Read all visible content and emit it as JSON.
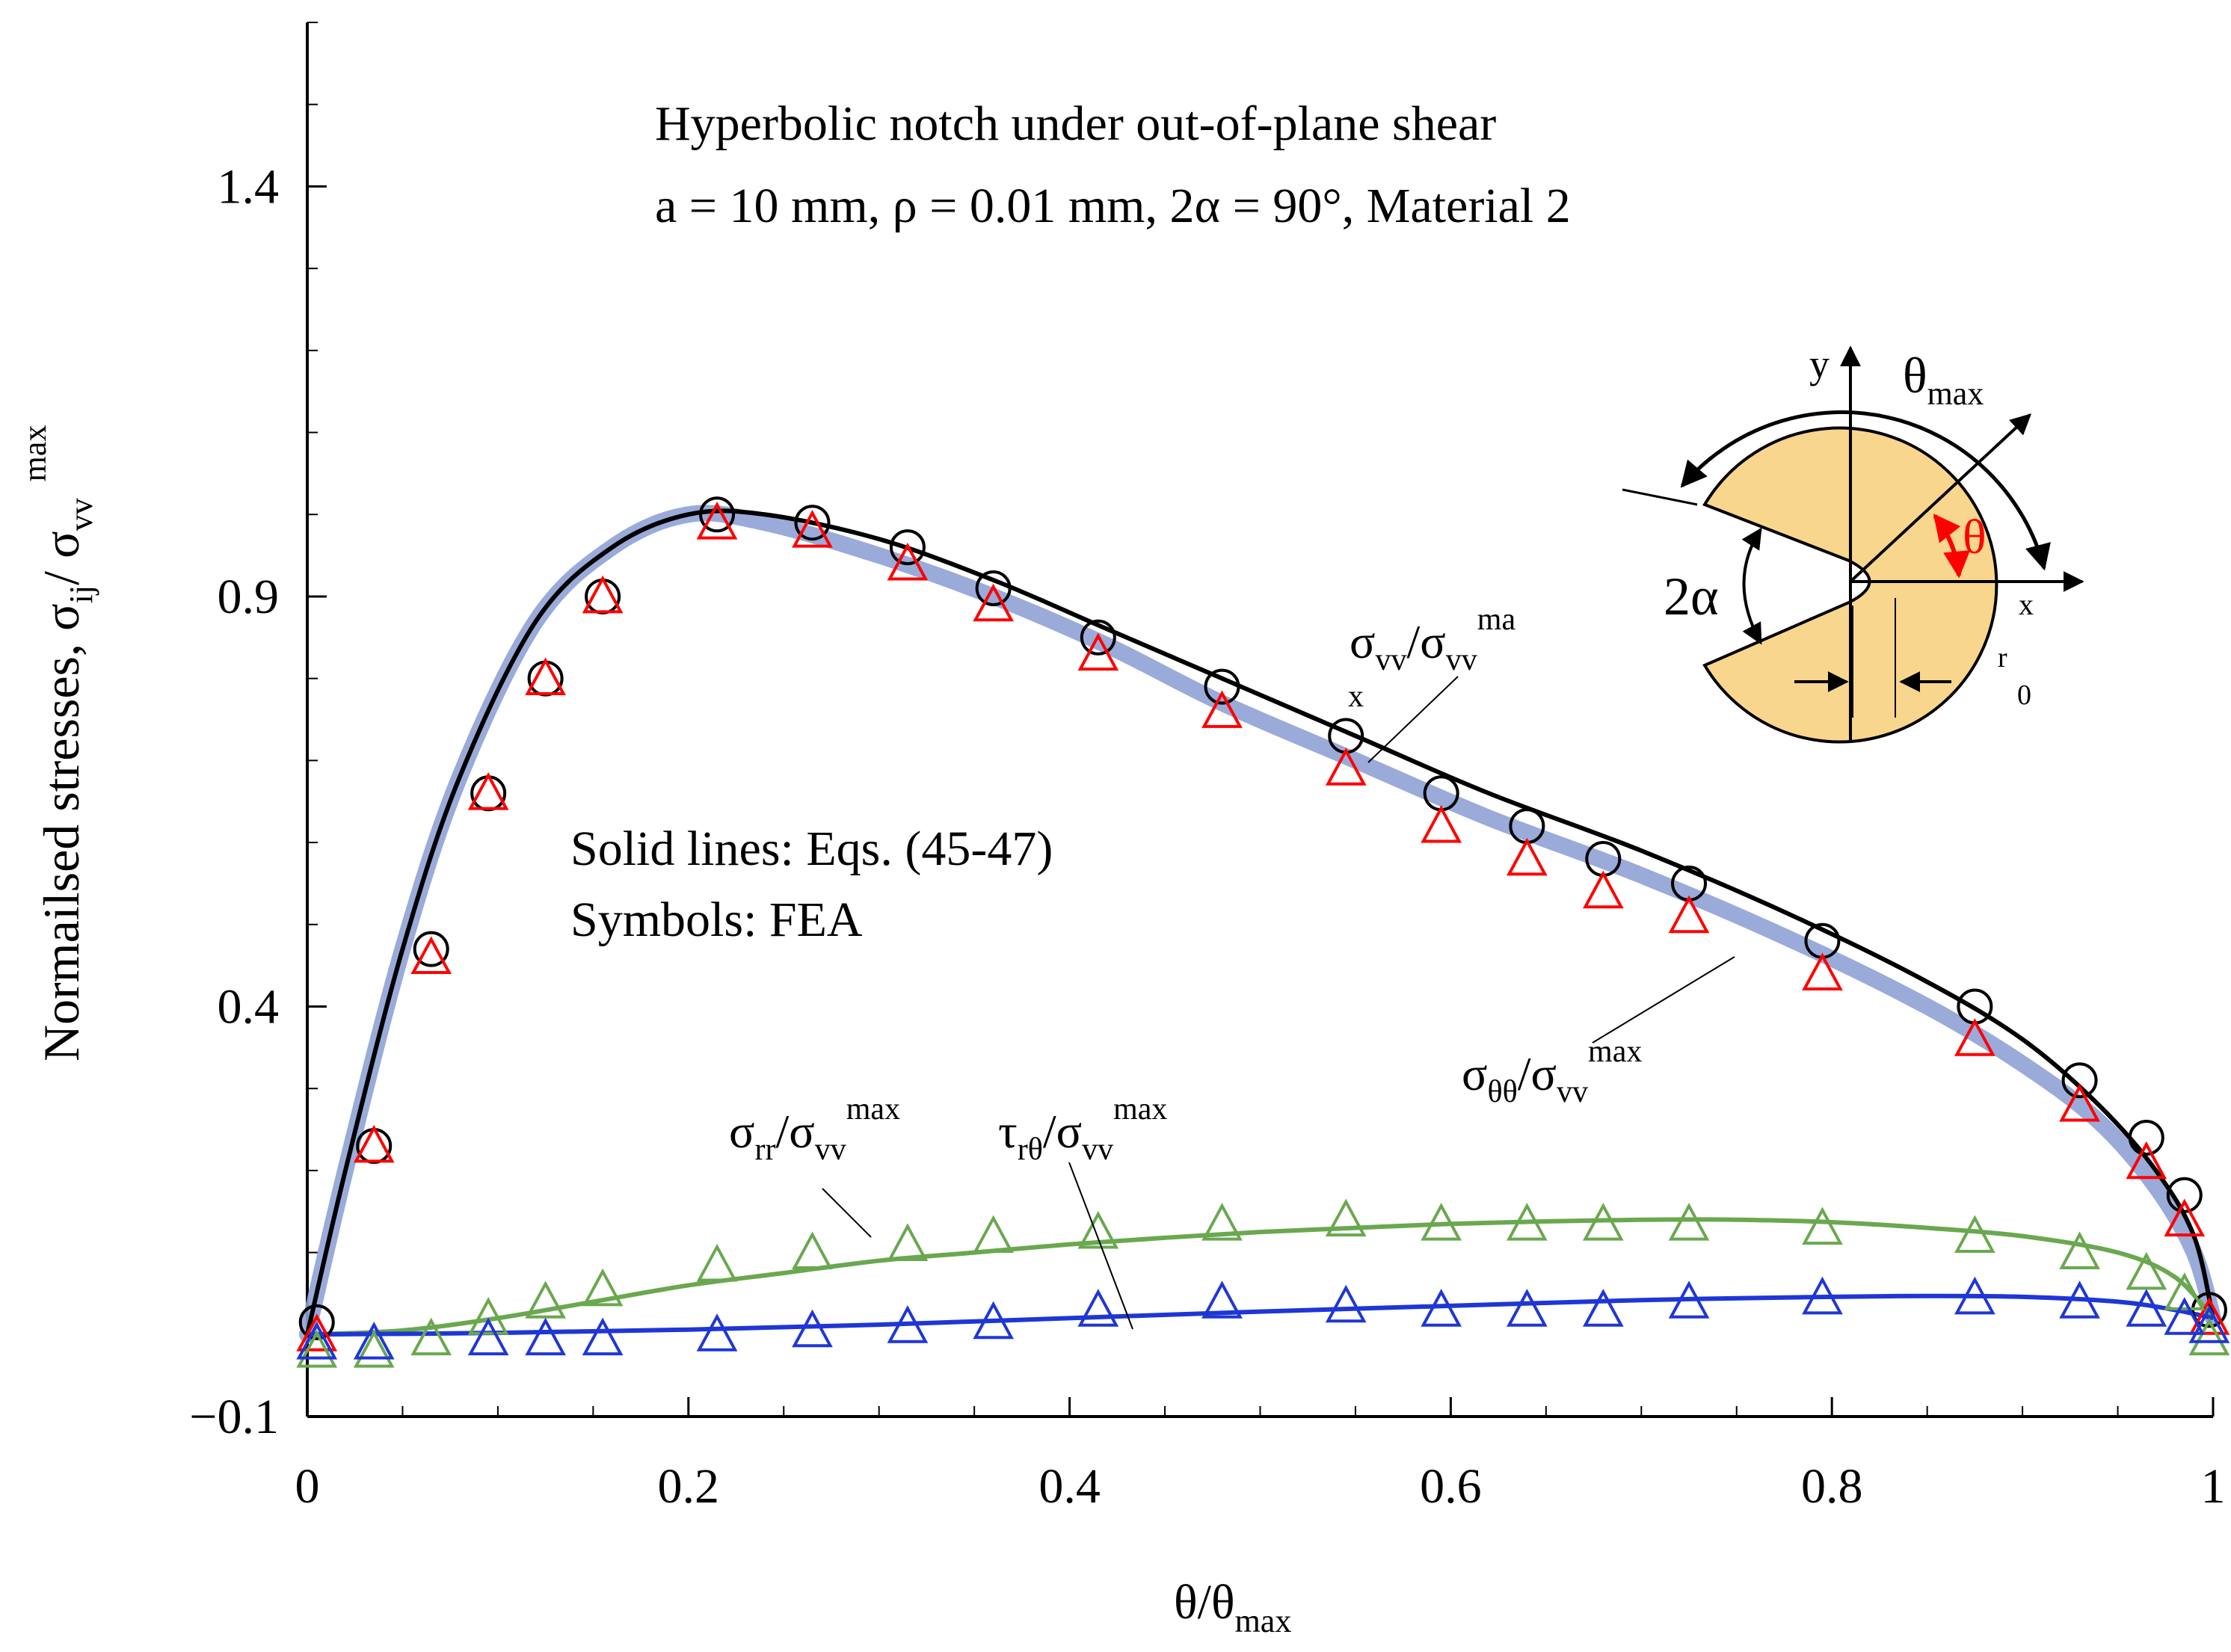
{
  "chart_data": {
    "type": "line",
    "title": "Hyperbolic notch under out-of-plane shear",
    "subtitle": "a = 10 mm, ρ = 0.01 mm, 2α = 90°, Material 2",
    "xlabel": {
      "main": "θ/θ",
      "sub": "max"
    },
    "ylabel": {
      "main": "Normailsed stresses, σ",
      "sub": "ij",
      "mid": "/ σ",
      "sub2": "vv",
      "sup": "max"
    },
    "xlim": [
      0,
      1
    ],
    "ylim": [
      -0.1,
      1.6
    ],
    "x_ticks": [
      0,
      0.2,
      0.4,
      0.6,
      0.8,
      1
    ],
    "x_tick_labels": [
      "0",
      "0.2",
      "0.4",
      "0.6",
      "0.8",
      "1"
    ],
    "y_ticks": [
      -0.1,
      0.4,
      0.9,
      1.4
    ],
    "y_tick_labels": [
      "−0.1",
      "0.4",
      "0.9",
      "1.4"
    ],
    "y_minor_step": 0.1,
    "x_minor_step": 0.05,
    "annotations": {
      "solid_lines": "Solid lines: Eqs. (45-47)",
      "symbols": "Symbols: FEA"
    },
    "series_labels": {
      "svv": {
        "main": "σ",
        "sub": "vv",
        "mid": "/σ",
        "sub2": "vv",
        "sup": "ma",
        "extra": "x"
      },
      "stt": {
        "main": "σ",
        "sub": "θθ",
        "mid": "/σ",
        "sub2": "vv",
        "sup": "max"
      },
      "srr": {
        "main": "σ",
        "sub": "rr",
        "mid": "/σ",
        "sub2": "vv",
        "sup": "max"
      },
      "trt": {
        "main": "τ",
        "sub": "rθ",
        "mid": "/σ",
        "sub2": "vv",
        "sup": "max"
      }
    },
    "inset": {
      "y": "y",
      "x": "x",
      "theta_max": "θ",
      "theta_max_sub": "max",
      "theta": "θ",
      "alpha": "2α",
      "r0": "r",
      "r0_sub": "0"
    },
    "series": [
      {
        "name": "σvv/σvv,max (Eqs.)",
        "style": "line",
        "color": "#000000",
        "x": [
          0,
          0.02,
          0.05,
          0.08,
          0.12,
          0.16,
          0.2,
          0.24,
          0.3,
          0.36,
          0.42,
          0.48,
          0.55,
          0.62,
          0.7,
          0.78,
          0.85,
          0.9,
          0.94,
          0.97,
          0.99,
          1.0
        ],
        "y": [
          0.0,
          0.2,
          0.47,
          0.68,
          0.87,
          0.96,
          1.0,
          1.0,
          0.97,
          0.92,
          0.86,
          0.8,
          0.73,
          0.66,
          0.59,
          0.51,
          0.43,
          0.36,
          0.28,
          0.2,
          0.12,
          0.02
        ]
      },
      {
        "name": "σθθ/σvv,max (Eqs.)",
        "style": "band",
        "color": "#8fa2d6",
        "x": [
          0,
          0.02,
          0.05,
          0.08,
          0.12,
          0.16,
          0.2,
          0.24,
          0.3,
          0.36,
          0.42,
          0.48,
          0.55,
          0.62,
          0.7,
          0.78,
          0.85,
          0.9,
          0.94,
          0.97,
          0.99,
          1.0
        ],
        "y": [
          0.0,
          0.2,
          0.47,
          0.68,
          0.87,
          0.96,
          1.0,
          0.99,
          0.95,
          0.9,
          0.84,
          0.77,
          0.7,
          0.63,
          0.56,
          0.48,
          0.4,
          0.33,
          0.26,
          0.18,
          0.1,
          0.02
        ]
      },
      {
        "name": "σrr/σvv,max (Eqs.)",
        "style": "line",
        "color": "#6aa84f",
        "x": [
          0,
          0.05,
          0.1,
          0.15,
          0.2,
          0.25,
          0.3,
          0.35,
          0.4,
          0.45,
          0.5,
          0.55,
          0.6,
          0.65,
          0.7,
          0.75,
          0.8,
          0.85,
          0.9,
          0.95,
          0.98,
          1.0
        ],
        "y": [
          0.0,
          0.005,
          0.02,
          0.04,
          0.06,
          0.075,
          0.09,
          0.1,
          0.11,
          0.118,
          0.125,
          0.13,
          0.135,
          0.138,
          0.14,
          0.14,
          0.137,
          0.13,
          0.12,
          0.1,
          0.07,
          0.02
        ]
      },
      {
        "name": "τrθ/σvv,max (Eqs.)",
        "style": "line",
        "color": "#1f36d6",
        "x": [
          0,
          0.1,
          0.2,
          0.3,
          0.4,
          0.5,
          0.6,
          0.7,
          0.8,
          0.85,
          0.9,
          0.95,
          0.98,
          1.0
        ],
        "y": [
          0.0,
          0.002,
          0.006,
          0.012,
          0.02,
          0.028,
          0.035,
          0.042,
          0.046,
          0.047,
          0.046,
          0.04,
          0.03,
          0.02
        ]
      },
      {
        "name": "σvv/σvv,max (FEA)",
        "style": "circle",
        "color": "#000000",
        "x": [
          0.005,
          0.035,
          0.065,
          0.095,
          0.125,
          0.155,
          0.215,
          0.265,
          0.315,
          0.36,
          0.415,
          0.48,
          0.545,
          0.595,
          0.64,
          0.68,
          0.725,
          0.795,
          0.875,
          0.93,
          0.965,
          0.985,
          0.998
        ],
        "y": [
          0.015,
          0.23,
          0.47,
          0.66,
          0.8,
          0.9,
          1.0,
          0.99,
          0.96,
          0.91,
          0.85,
          0.79,
          0.73,
          0.66,
          0.62,
          0.58,
          0.55,
          0.48,
          0.4,
          0.31,
          0.24,
          0.17,
          0.03
        ]
      },
      {
        "name": "σθθ/σvv,max (FEA)",
        "style": "triangle",
        "color": "#ff0000",
        "x": [
          0.005,
          0.035,
          0.065,
          0.095,
          0.125,
          0.155,
          0.215,
          0.265,
          0.315,
          0.36,
          0.415,
          0.48,
          0.545,
          0.595,
          0.64,
          0.68,
          0.725,
          0.795,
          0.875,
          0.93,
          0.965,
          0.985,
          0.998
        ],
        "y": [
          0.0,
          0.23,
          0.46,
          0.66,
          0.8,
          0.9,
          0.99,
          0.98,
          0.94,
          0.89,
          0.83,
          0.76,
          0.69,
          0.62,
          0.58,
          0.54,
          0.51,
          0.44,
          0.36,
          0.28,
          0.21,
          0.14,
          0.02
        ]
      },
      {
        "name": "σrr/σvv,max (FEA)",
        "style": "triangle",
        "color": "#6aa84f",
        "x": [
          0.005,
          0.035,
          0.065,
          0.095,
          0.125,
          0.155,
          0.215,
          0.265,
          0.315,
          0.36,
          0.415,
          0.48,
          0.545,
          0.595,
          0.64,
          0.68,
          0.725,
          0.795,
          0.875,
          0.93,
          0.965,
          0.985,
          0.998
        ],
        "y": [
          -0.02,
          -0.02,
          -0.005,
          0.02,
          0.04,
          0.055,
          0.085,
          0.1,
          0.11,
          0.12,
          0.125,
          0.135,
          0.14,
          0.135,
          0.135,
          0.135,
          0.135,
          0.13,
          0.12,
          0.1,
          0.075,
          0.05,
          -0.005
        ]
      },
      {
        "name": "τrθ/σvv,max (FEA)",
        "style": "triangle",
        "color": "#1f36d6",
        "x": [
          0.005,
          0.035,
          0.095,
          0.125,
          0.155,
          0.215,
          0.265,
          0.315,
          0.36,
          0.415,
          0.48,
          0.545,
          0.595,
          0.64,
          0.68,
          0.725,
          0.795,
          0.875,
          0.93,
          0.965,
          0.985,
          0.998
        ],
        "y": [
          -0.01,
          -0.01,
          -0.005,
          -0.005,
          -0.005,
          0.0,
          0.005,
          0.01,
          0.015,
          0.03,
          0.04,
          0.035,
          0.03,
          0.03,
          0.03,
          0.04,
          0.045,
          0.045,
          0.04,
          0.03,
          0.02,
          0.01
        ]
      }
    ]
  }
}
